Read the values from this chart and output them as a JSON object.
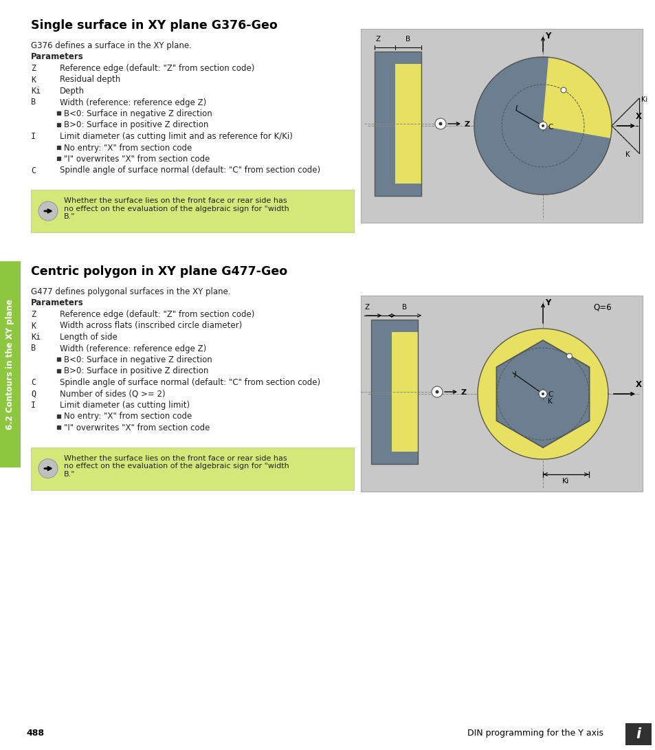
{
  "page_bg": "#ffffff",
  "sidebar_color": "#8dc63f",
  "sidebar_text": "6.2 Contours in the XY plane",
  "title1": "Single surface in XY plane G376-Geo",
  "title2": "Centric polygon in XY plane G477-Geo",
  "diagram_bg": "#c8c8c8",
  "cylinder_color": "#6b7f90",
  "yellow_color": "#e8e060",
  "note_bg": "#d4e87a",
  "page_num": "488",
  "footer_text": "DIN programming for the Y axis",
  "text_color": "#222222",
  "line_color": "#444444"
}
